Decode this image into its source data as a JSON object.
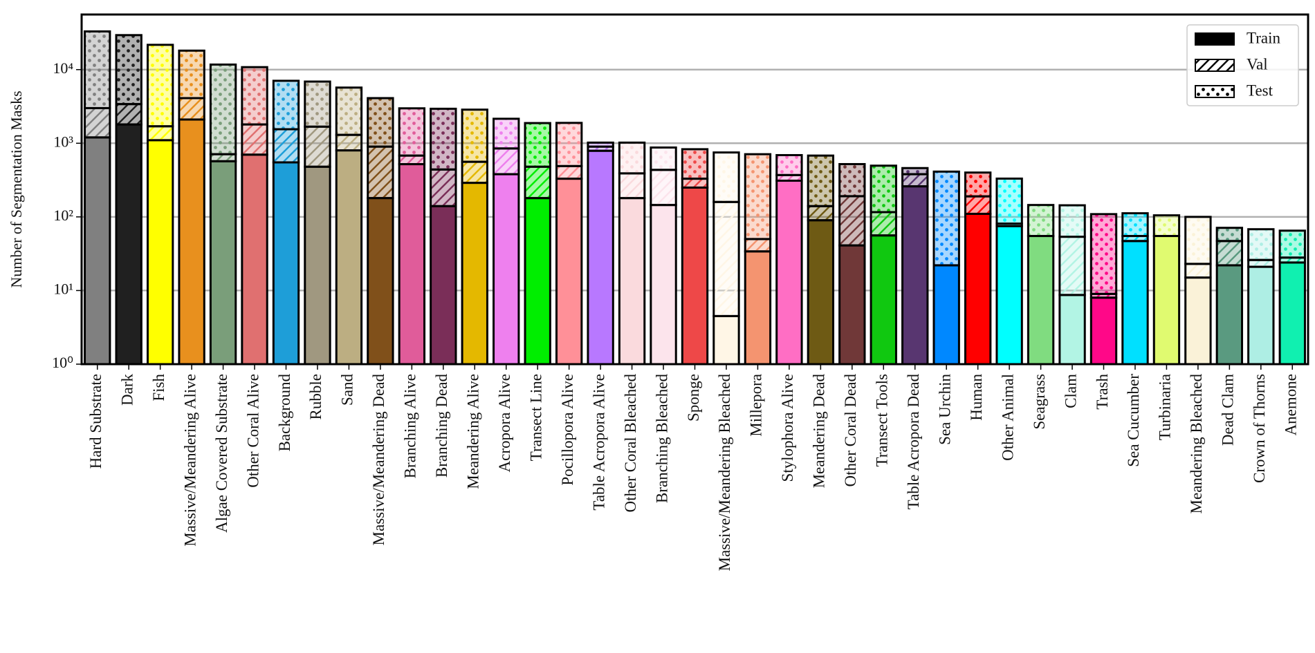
{
  "chart_data": {
    "type": "stacked_bar",
    "y_label": "Number of Segmentation Masks",
    "log_scale": true,
    "grid": true,
    "legend": "upper right",
    "ylim": [
      1,
      56000
    ],
    "yticks": [
      {
        "value": 1,
        "label": "10⁰"
      },
      {
        "value": 10,
        "label": "10¹"
      },
      {
        "value": 100,
        "label": "10²"
      },
      {
        "value": 1000,
        "label": "10³"
      },
      {
        "value": 10000,
        "label": "10⁴"
      }
    ],
    "categories": [
      "Hard Substrate",
      "Dark",
      "Fish",
      "Massive/Meandering Alive",
      "Algae Covered Substrate",
      "Other Coral Alive",
      "Background",
      "Rubble",
      "Sand",
      "Massive/Meandering Dead",
      "Branching Alive",
      "Branching Dead",
      "Meandering Alive",
      "Acropora Alive",
      "Transect Line",
      "Pocillopora Alive",
      "Table Acropora Alive",
      "Other Coral Bleached",
      "Branching Bleached",
      "Sponge",
      "Massive/Meandering Bleached",
      "Millepora",
      "Stylophora Alive",
      "Meandering Dead",
      "Other Coral Dead",
      "Transect Tools",
      "Table Acropora Dead",
      "Sea Urchin",
      "Human",
      "Other Animal",
      "Seagrass",
      "Clam",
      "Trash",
      "Sea Cucumber",
      "Turbinaria",
      "Meandering Bleached",
      "Dead Clam",
      "Crown of Thorns",
      "Anemone"
    ],
    "bar_colors": [
      "#808080",
      "#202020",
      "#ffff00",
      "#e8901e",
      "#7a9e7a",
      "#e07070",
      "#1e9ed8",
      "#a09880",
      "#bcae82",
      "#80501a",
      "#e05c9a",
      "#7a2e58",
      "#e4b800",
      "#ee80ee",
      "#00ee00",
      "#ff9098",
      "#b878ff",
      "#fadadd",
      "#fce4ec",
      "#ee4848",
      "#fff6e6",
      "#f49470",
      "#ff6ec4",
      "#6e5a14",
      "#703838",
      "#10c810",
      "#583670",
      "#0088ff",
      "#ff0000",
      "#00ffff",
      "#80dc80",
      "#b2f4e4",
      "#ff0888",
      "#00e0ff",
      "#e0fa70",
      "#faf2d8",
      "#5a9a80",
      "#aeeee4",
      "#10f0b0"
    ],
    "series": [
      {
        "name": "Train",
        "color": "#000000",
        "pattern": "solid",
        "values": [
          1200,
          1800,
          1100,
          2100,
          570,
          700,
          550,
          480,
          800,
          180,
          520,
          140,
          290,
          380,
          180,
          330,
          790,
          180,
          145,
          250,
          4.5,
          34,
          310,
          90,
          41,
          56,
          260,
          22,
          110,
          75,
          55,
          8.7,
          8,
          47,
          55,
          15,
          22,
          21,
          24
        ]
      },
      {
        "name": "Val",
        "color": "#000000",
        "pattern": "hatch",
        "values": [
          1800,
          1600,
          600,
          2000,
          140,
          1100,
          1000,
          1200,
          500,
          720,
          160,
          300,
          270,
          470,
          300,
          160,
          110,
          210,
          290,
          80,
          155,
          16,
          60,
          50,
          150,
          60,
          120,
          0,
          80,
          6,
          0,
          45,
          1,
          8,
          0,
          8,
          25,
          5,
          4
        ]
      },
      {
        "name": "Test",
        "color": "#000000",
        "pattern": "dots",
        "values": [
          30000,
          26000,
          20000,
          14000,
          11000,
          9000,
          5500,
          5200,
          4400,
          3200,
          2300,
          2500,
          2300,
          1300,
          1400,
          1400,
          120,
          630,
          440,
          500,
          590,
          660,
          320,
          540,
          330,
          380,
          80,
          390,
          210,
          250,
          90,
          90,
          100,
          57,
          50,
          77,
          24,
          42,
          37
        ]
      }
    ]
  }
}
